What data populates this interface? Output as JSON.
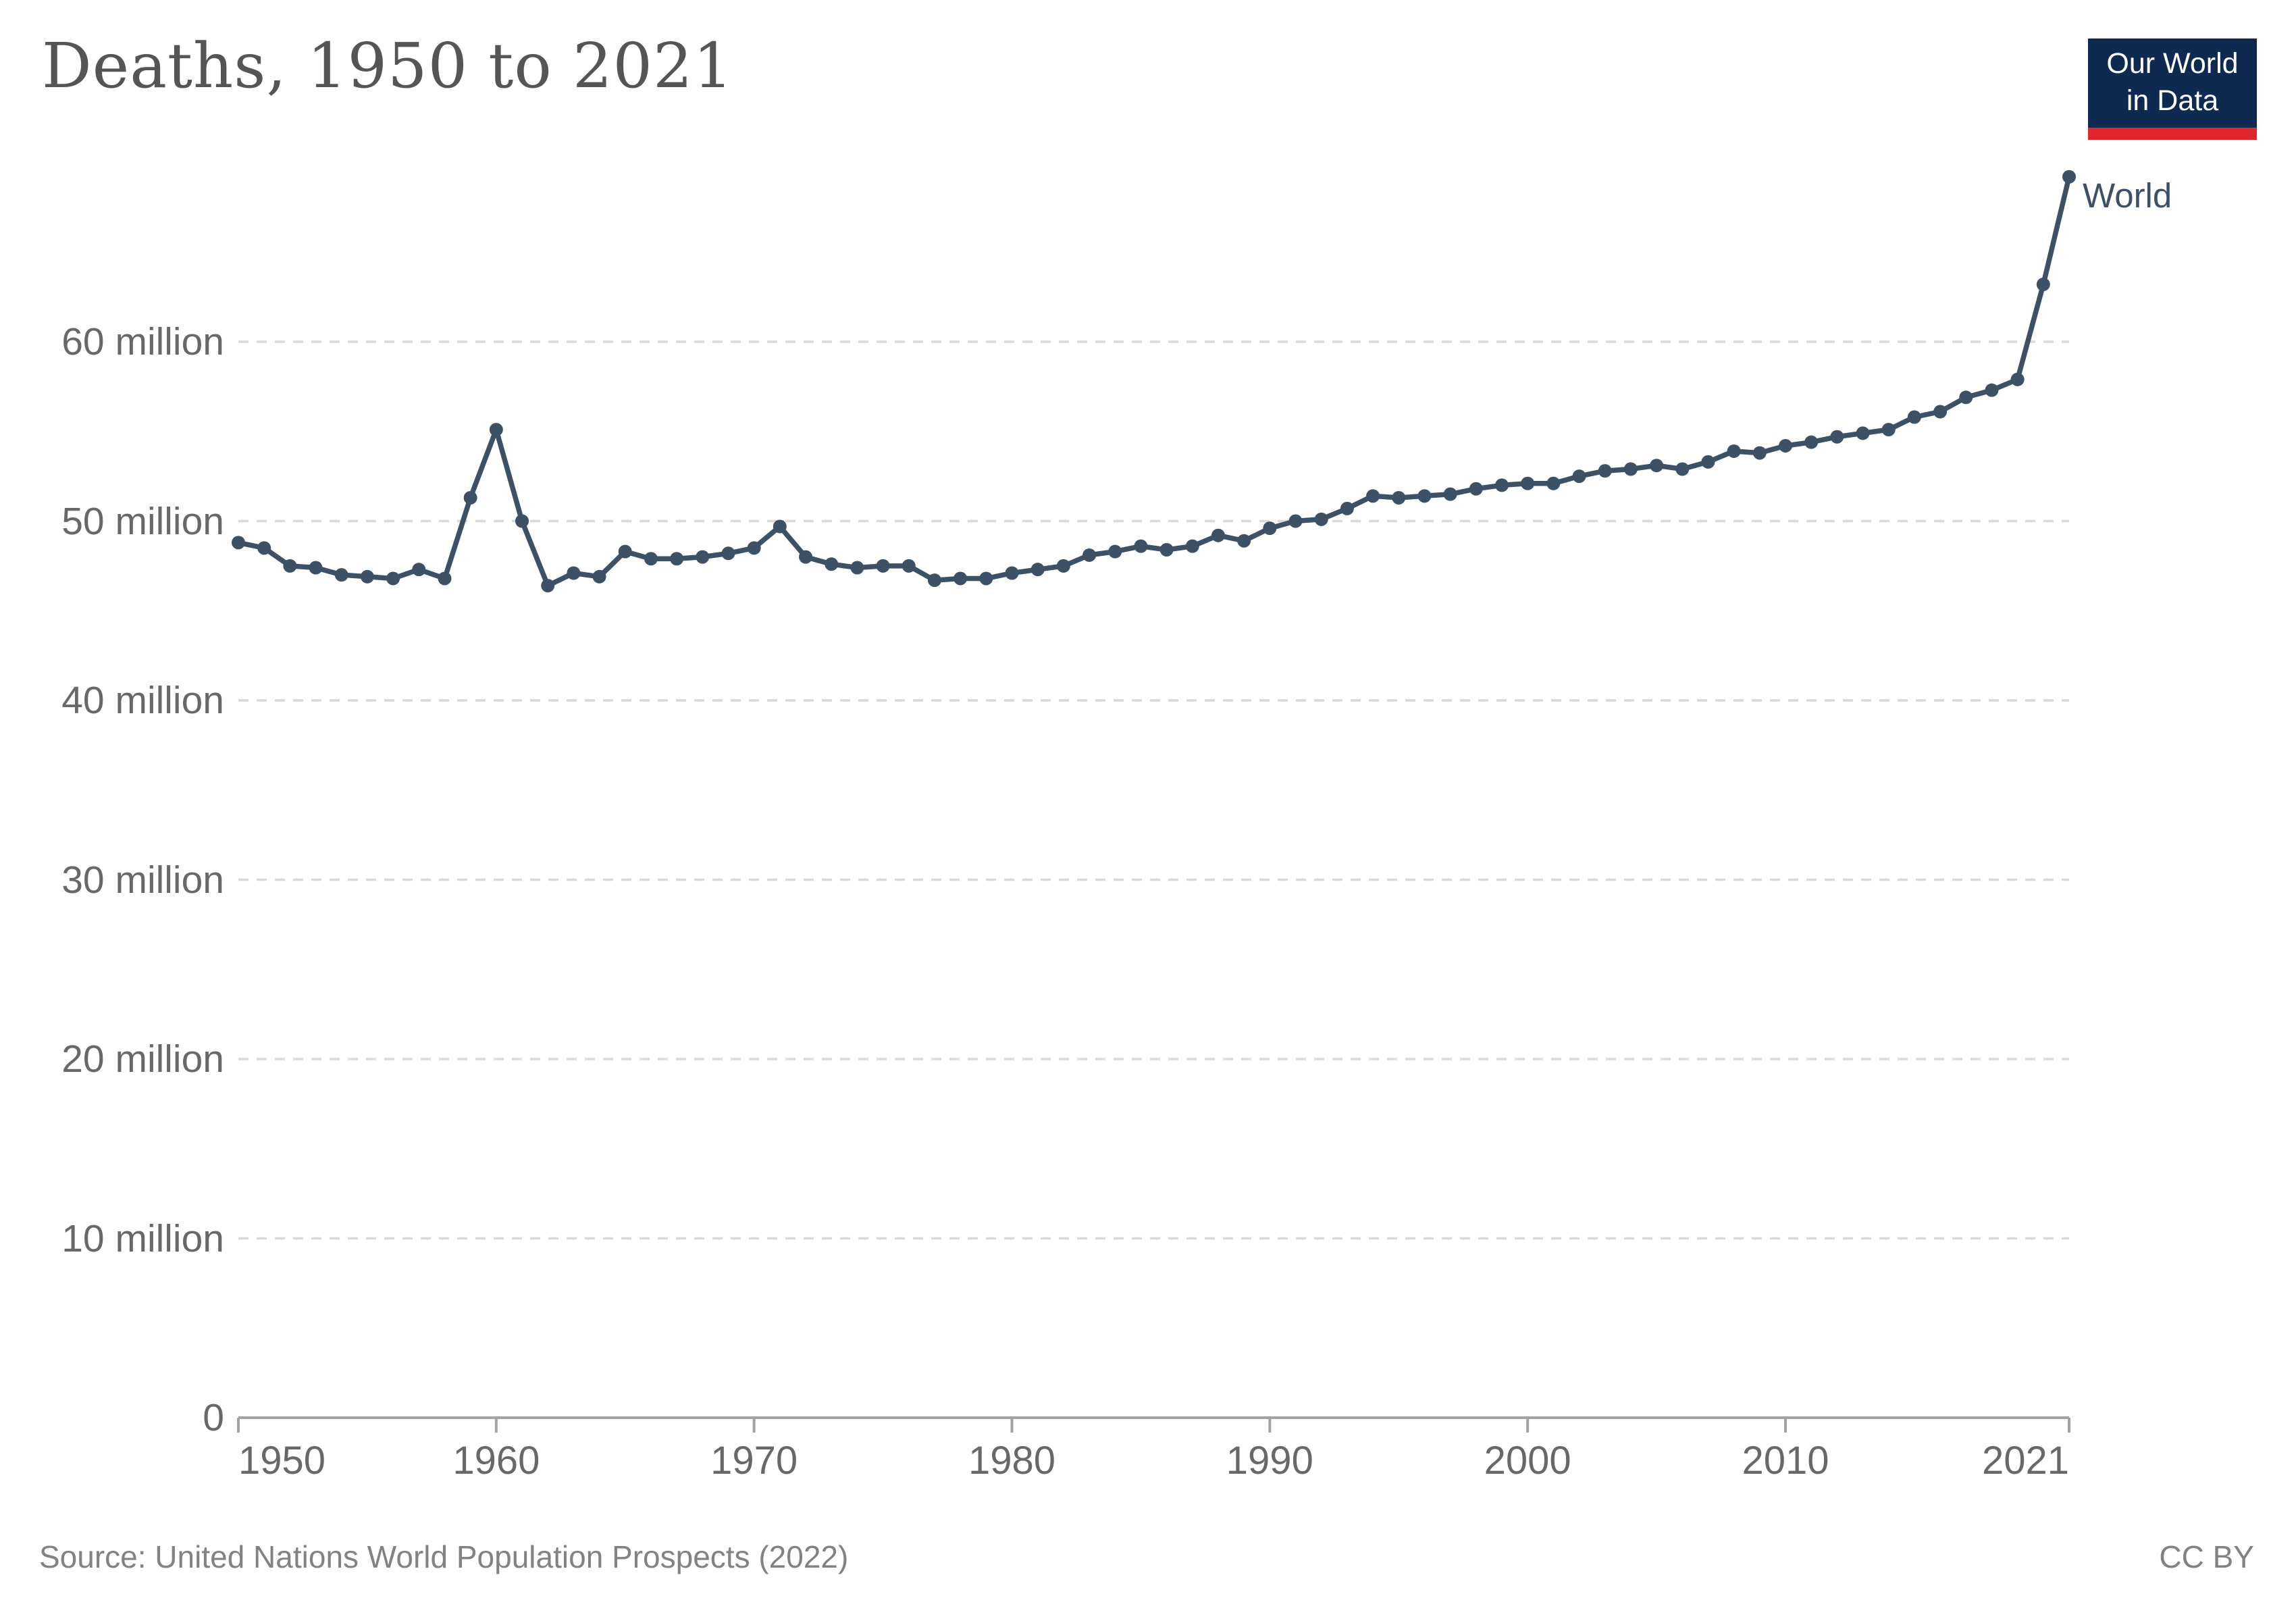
{
  "header": {
    "title": "Deaths, 1950 to 2021"
  },
  "logo": {
    "line1": "Our World",
    "line2": "in Data",
    "navy_color": "#0e2a51",
    "red_color": "#e0262d"
  },
  "chart_data": {
    "type": "line",
    "title": "Deaths, 1950 to 2021",
    "entity_label": "World",
    "unit": "deaths per year (millions)",
    "line_color": "#3d5166",
    "grid_color": "#d9d9d9",
    "axis_color": "#a3a3a3",
    "grid": "horizontal dashed",
    "legend_position": "end-of-line label",
    "ylim": [
      0,
      70
    ],
    "yticks": [
      {
        "value": 0,
        "label": "0"
      },
      {
        "value": 10,
        "label": "10 million"
      },
      {
        "value": 20,
        "label": "20 million"
      },
      {
        "value": 30,
        "label": "30 million"
      },
      {
        "value": 40,
        "label": "40 million"
      },
      {
        "value": 50,
        "label": "50 million"
      },
      {
        "value": 60,
        "label": "60 million"
      }
    ],
    "xticks": [
      {
        "value": 1950,
        "label": "1950"
      },
      {
        "value": 1960,
        "label": "1960"
      },
      {
        "value": 1970,
        "label": "1970"
      },
      {
        "value": 1980,
        "label": "1980"
      },
      {
        "value": 1990,
        "label": "1990"
      },
      {
        "value": 2000,
        "label": "2000"
      },
      {
        "value": 2010,
        "label": "2010"
      },
      {
        "value": 2021,
        "label": "2021"
      }
    ],
    "x": [
      1950,
      1951,
      1952,
      1953,
      1954,
      1955,
      1956,
      1957,
      1958,
      1959,
      1960,
      1961,
      1962,
      1963,
      1964,
      1965,
      1966,
      1967,
      1968,
      1969,
      1970,
      1971,
      1972,
      1973,
      1974,
      1975,
      1976,
      1977,
      1978,
      1979,
      1980,
      1981,
      1982,
      1983,
      1984,
      1985,
      1986,
      1987,
      1988,
      1989,
      1990,
      1991,
      1992,
      1993,
      1994,
      1995,
      1996,
      1997,
      1998,
      1999,
      2000,
      2001,
      2002,
      2003,
      2004,
      2005,
      2006,
      2007,
      2008,
      2009,
      2010,
      2011,
      2012,
      2013,
      2014,
      2015,
      2016,
      2017,
      2018,
      2019,
      2020,
      2021
    ],
    "series": [
      {
        "name": "World",
        "values": [
          48.8,
          48.5,
          47.5,
          47.4,
          47.0,
          46.9,
          46.8,
          47.3,
          46.8,
          51.3,
          55.1,
          50.0,
          46.4,
          47.1,
          46.9,
          48.3,
          47.9,
          47.9,
          48.0,
          48.2,
          48.5,
          49.7,
          48.0,
          47.6,
          47.4,
          47.5,
          47.5,
          46.7,
          46.8,
          46.8,
          47.1,
          47.3,
          47.5,
          48.1,
          48.3,
          48.6,
          48.4,
          48.6,
          49.2,
          48.9,
          49.6,
          50.0,
          50.1,
          50.7,
          51.4,
          51.3,
          51.4,
          51.5,
          51.8,
          52.0,
          52.1,
          52.1,
          52.5,
          52.8,
          52.9,
          53.1,
          52.9,
          53.3,
          53.9,
          53.8,
          54.2,
          54.4,
          54.7,
          54.9,
          55.1,
          55.8,
          56.1,
          56.9,
          57.3,
          57.9,
          63.2,
          69.2
        ]
      }
    ]
  },
  "footer": {
    "source": "Source: United Nations World Population Prospects (2022)",
    "license": "CC BY"
  }
}
